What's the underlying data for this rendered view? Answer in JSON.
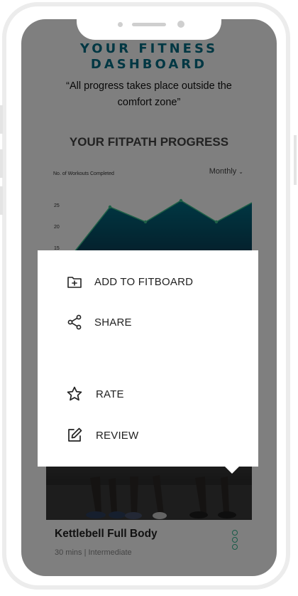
{
  "dashboard": {
    "title": "YOUR FITNESS DASHBOARD",
    "quote": "“All progress takes place outside the comfort zone”"
  },
  "progress": {
    "title": "YOUR FITPATH PROGRESS",
    "range_select": "Monthly"
  },
  "chart_data": {
    "type": "area",
    "ylabel": "No. of Workouts Completed",
    "y_ticks": [
      15,
      20,
      25
    ],
    "values": [
      14,
      24.5,
      21,
      26,
      21,
      25.5
    ],
    "color": "#006f86"
  },
  "workout_card": {
    "title": "Kettlebell Full Body",
    "meta": "30 mins | Intermediate"
  },
  "context_menu": {
    "items": [
      {
        "label": "ADD TO FITBOARD",
        "icon": "folder-plus-icon"
      },
      {
        "label": "SHARE",
        "icon": "share-icon"
      },
      {
        "label": "RATE",
        "icon": "star-icon"
      },
      {
        "label": "REVIEW",
        "icon": "edit-icon"
      }
    ]
  },
  "colors": {
    "accent": "#006f86",
    "accent_green": "#2fb58f",
    "overlay": "rgba(0,0,0,0.5)"
  }
}
